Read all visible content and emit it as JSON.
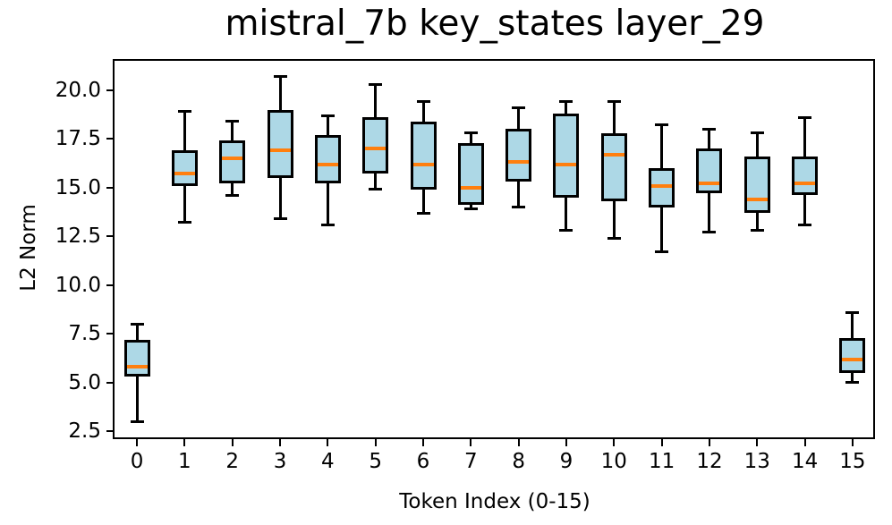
{
  "figure": {
    "title": "mistral_7b key_states layer_29",
    "xlabel": "Token Index (0-15)",
    "ylabel": "L2 Norm"
  },
  "chart_data": {
    "type": "boxplot",
    "title": "mistral_7b key_states layer_29",
    "xlabel": "Token Index (0-15)",
    "ylabel": "L2 Norm",
    "categories": [
      "0",
      "1",
      "2",
      "3",
      "4",
      "5",
      "6",
      "7",
      "8",
      "9",
      "10",
      "11",
      "12",
      "13",
      "14",
      "15"
    ],
    "y_tick_labels": [
      "2.5",
      "5.0",
      "7.5",
      "10.0",
      "12.5",
      "15.0",
      "17.5",
      "20.0"
    ],
    "y_tick_values": [
      2.5,
      5.0,
      7.5,
      10.0,
      12.5,
      15.0,
      17.5,
      20.0
    ],
    "ylim": [
      2.1,
      21.5
    ],
    "xlim": [
      -0.47,
      15.47
    ],
    "grid": false,
    "legend": false,
    "colors": {
      "box_fill": "#add8e6",
      "box_edge": "#000000",
      "median": "#ff7f0e",
      "whisker": "#000000",
      "background": "#ffffff"
    },
    "boxes": [
      {
        "token": "0",
        "whislo": 3.0,
        "q1": 5.3,
        "med": 5.8,
        "q3": 7.2,
        "whishi": 8.0
      },
      {
        "token": "1",
        "whislo": 13.2,
        "q1": 15.1,
        "med": 15.7,
        "q3": 16.9,
        "whishi": 18.9
      },
      {
        "token": "2",
        "whislo": 14.6,
        "q1": 15.2,
        "med": 16.5,
        "q3": 17.4,
        "whishi": 18.4
      },
      {
        "token": "3",
        "whislo": 13.4,
        "q1": 15.5,
        "med": 16.9,
        "q3": 19.0,
        "whishi": 20.7
      },
      {
        "token": "4",
        "whislo": 13.1,
        "q1": 15.2,
        "med": 16.2,
        "q3": 17.7,
        "whishi": 18.7
      },
      {
        "token": "5",
        "whislo": 14.9,
        "q1": 15.7,
        "med": 17.0,
        "q3": 18.6,
        "whishi": 20.3
      },
      {
        "token": "6",
        "whislo": 13.7,
        "q1": 14.9,
        "med": 16.2,
        "q3": 18.4,
        "whishi": 19.4
      },
      {
        "token": "7",
        "whislo": 13.9,
        "q1": 14.1,
        "med": 15.0,
        "q3": 17.3,
        "whishi": 17.8
      },
      {
        "token": "8",
        "whislo": 14.0,
        "q1": 15.3,
        "med": 16.3,
        "q3": 18.0,
        "whishi": 19.1
      },
      {
        "token": "9",
        "whislo": 12.8,
        "q1": 14.5,
        "med": 16.2,
        "q3": 18.8,
        "whishi": 19.4
      },
      {
        "token": "10",
        "whislo": 12.4,
        "q1": 14.3,
        "med": 16.7,
        "q3": 17.8,
        "whishi": 19.4
      },
      {
        "token": "11",
        "whislo": 11.7,
        "q1": 14.0,
        "med": 15.1,
        "q3": 16.0,
        "whishi": 18.2
      },
      {
        "token": "12",
        "whislo": 12.7,
        "q1": 14.7,
        "med": 15.2,
        "q3": 17.0,
        "whishi": 18.0
      },
      {
        "token": "13",
        "whislo": 12.8,
        "q1": 13.7,
        "med": 14.4,
        "q3": 16.6,
        "whishi": 17.8
      },
      {
        "token": "14",
        "whislo": 13.1,
        "q1": 14.6,
        "med": 15.2,
        "q3": 16.6,
        "whishi": 18.6
      },
      {
        "token": "15",
        "whislo": 5.0,
        "q1": 5.5,
        "med": 6.2,
        "q3": 7.3,
        "whishi": 8.6
      }
    ]
  }
}
